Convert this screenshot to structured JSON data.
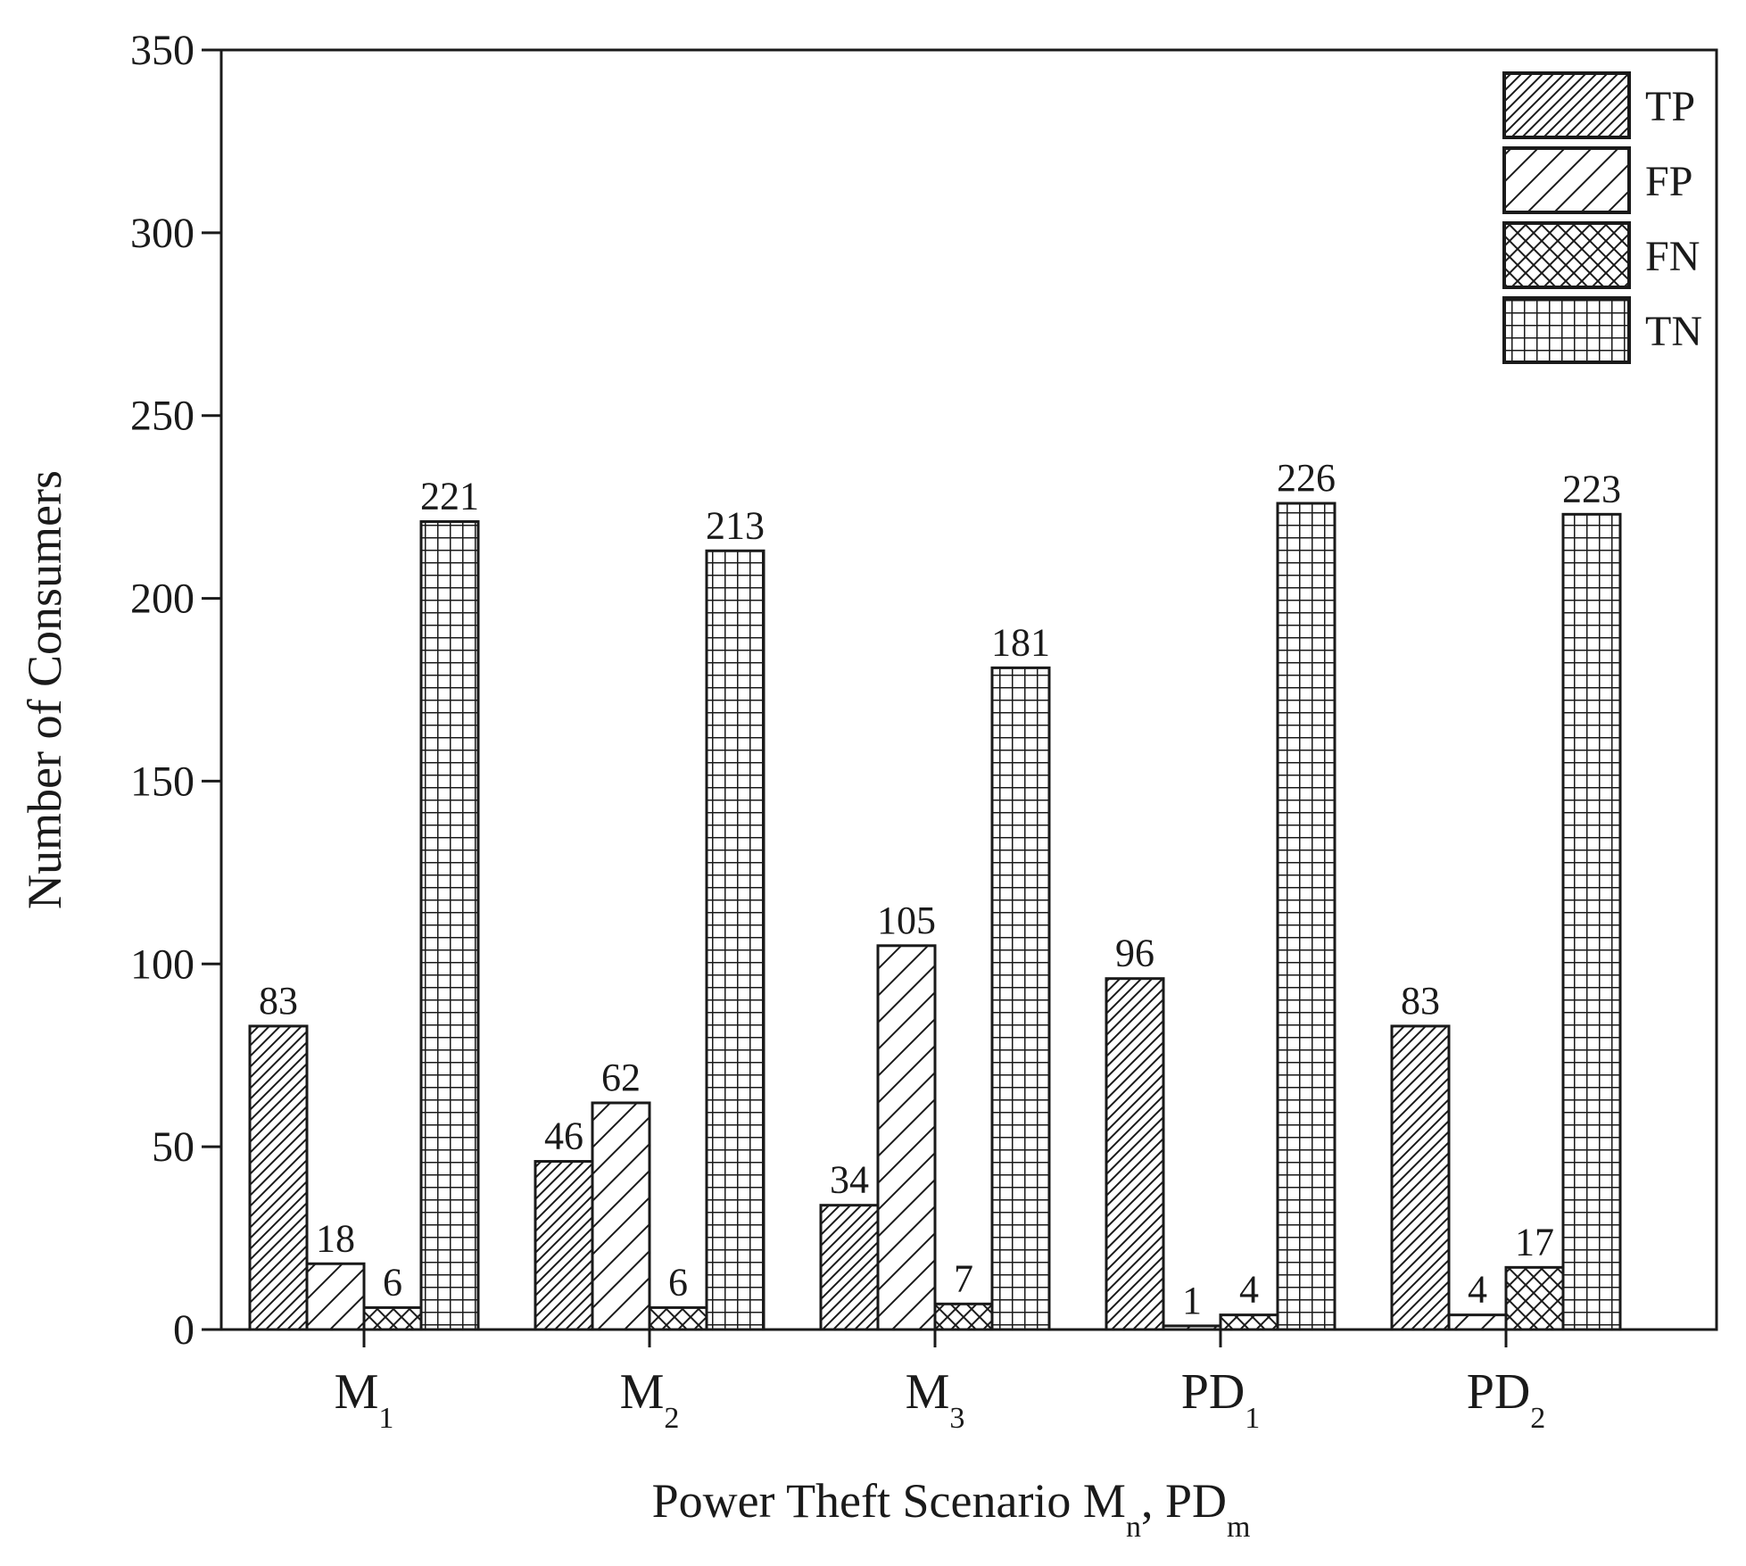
{
  "chart_data": {
    "type": "bar",
    "title": "",
    "xlabel": {
      "main": "Power Theft Scenario M",
      "sub1": "n",
      "sep": ", PD",
      "sub2": "m"
    },
    "ylabel": "Number of Consumers",
    "ylim": [
      0,
      350
    ],
    "yticks": [
      "0",
      "50",
      "100",
      "150",
      "200",
      "250",
      "300",
      "350"
    ],
    "categories": [
      {
        "base": "M",
        "sub": "1"
      },
      {
        "base": "M",
        "sub": "2"
      },
      {
        "base": "M",
        "sub": "3"
      },
      {
        "base": "PD",
        "sub": "1"
      },
      {
        "base": "PD",
        "sub": "2"
      }
    ],
    "series": [
      {
        "name": "TP",
        "pattern": "dense-diagonal",
        "values": [
          83,
          46,
          34,
          96,
          83
        ],
        "labels": [
          "83",
          "46",
          "34",
          "96",
          "83"
        ]
      },
      {
        "name": "FP",
        "pattern": "sparse-diagonal",
        "values": [
          18,
          62,
          105,
          1,
          4
        ],
        "labels": [
          "18",
          "62",
          "105",
          "1",
          "4"
        ]
      },
      {
        "name": "FN",
        "pattern": "crosshatch",
        "values": [
          6,
          6,
          7,
          4,
          17
        ],
        "labels": [
          "6",
          "6",
          "7",
          "4",
          "17"
        ]
      },
      {
        "name": "TN",
        "pattern": "grid",
        "values": [
          221,
          213,
          181,
          226,
          223
        ],
        "labels": [
          "221",
          "213",
          "181",
          "226",
          "223"
        ]
      }
    ],
    "legend_position": "top-right",
    "grid": false,
    "colors": {
      "ink": "#1a1a1a",
      "background": "#ffffff"
    }
  }
}
